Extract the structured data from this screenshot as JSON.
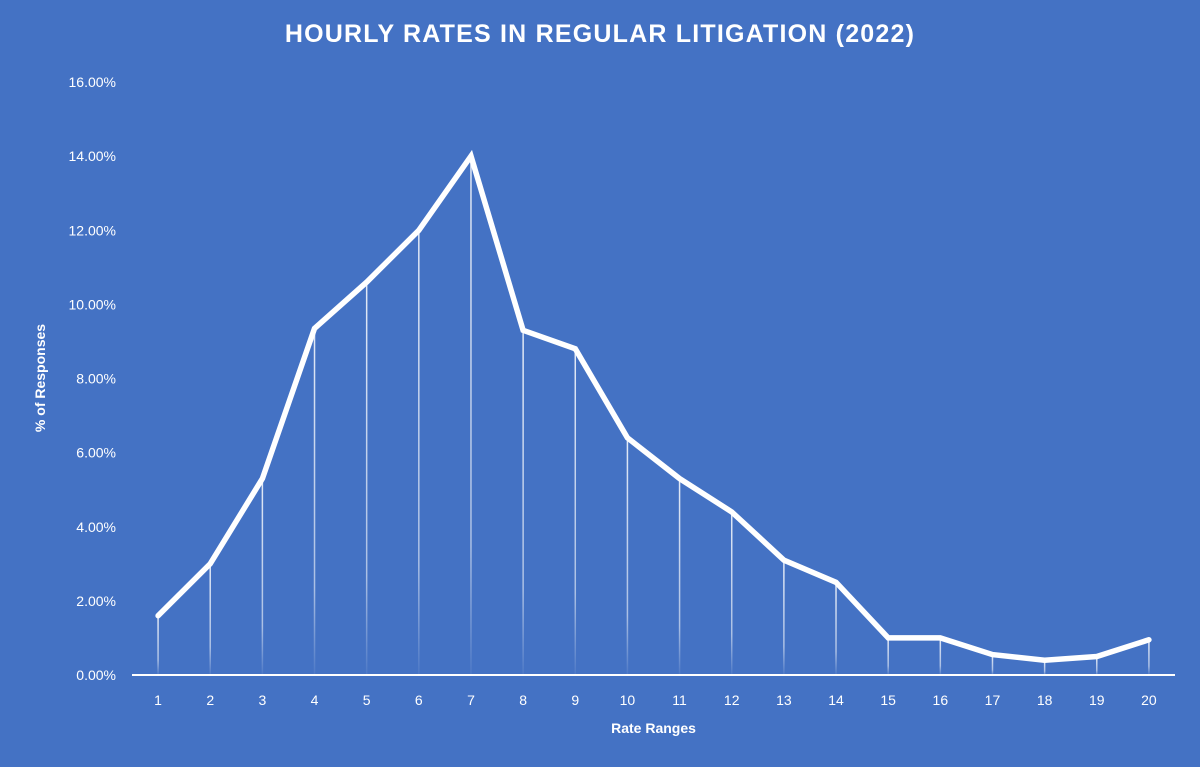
{
  "chart_data": {
    "type": "line",
    "title": "HOURLY RATES IN REGULAR LITIGATION (2022)",
    "xlabel": "Rate Ranges",
    "ylabel": "% of Responses",
    "categories": [
      "1",
      "2",
      "3",
      "4",
      "5",
      "6",
      "7",
      "8",
      "9",
      "10",
      "11",
      "12",
      "13",
      "14",
      "15",
      "16",
      "17",
      "18",
      "19",
      "20"
    ],
    "series": [
      {
        "name": "% of Responses",
        "values": [
          1.6,
          3.0,
          5.3,
          9.35,
          10.6,
          12.0,
          14.0,
          9.3,
          8.8,
          6.4,
          5.3,
          4.4,
          3.1,
          2.5,
          1.0,
          1.0,
          0.55,
          0.4,
          0.5,
          0.95
        ]
      }
    ],
    "y_ticks": [
      "0.00%",
      "2.00%",
      "4.00%",
      "6.00%",
      "8.00%",
      "10.00%",
      "12.00%",
      "14.00%",
      "16.00%"
    ],
    "ylim": [
      0,
      16
    ],
    "grid": false,
    "drop_lines": true,
    "legend": "none",
    "colors": {
      "background": "#4472C4",
      "line": "#FFFFFF",
      "text": "#FFFFFF"
    }
  }
}
